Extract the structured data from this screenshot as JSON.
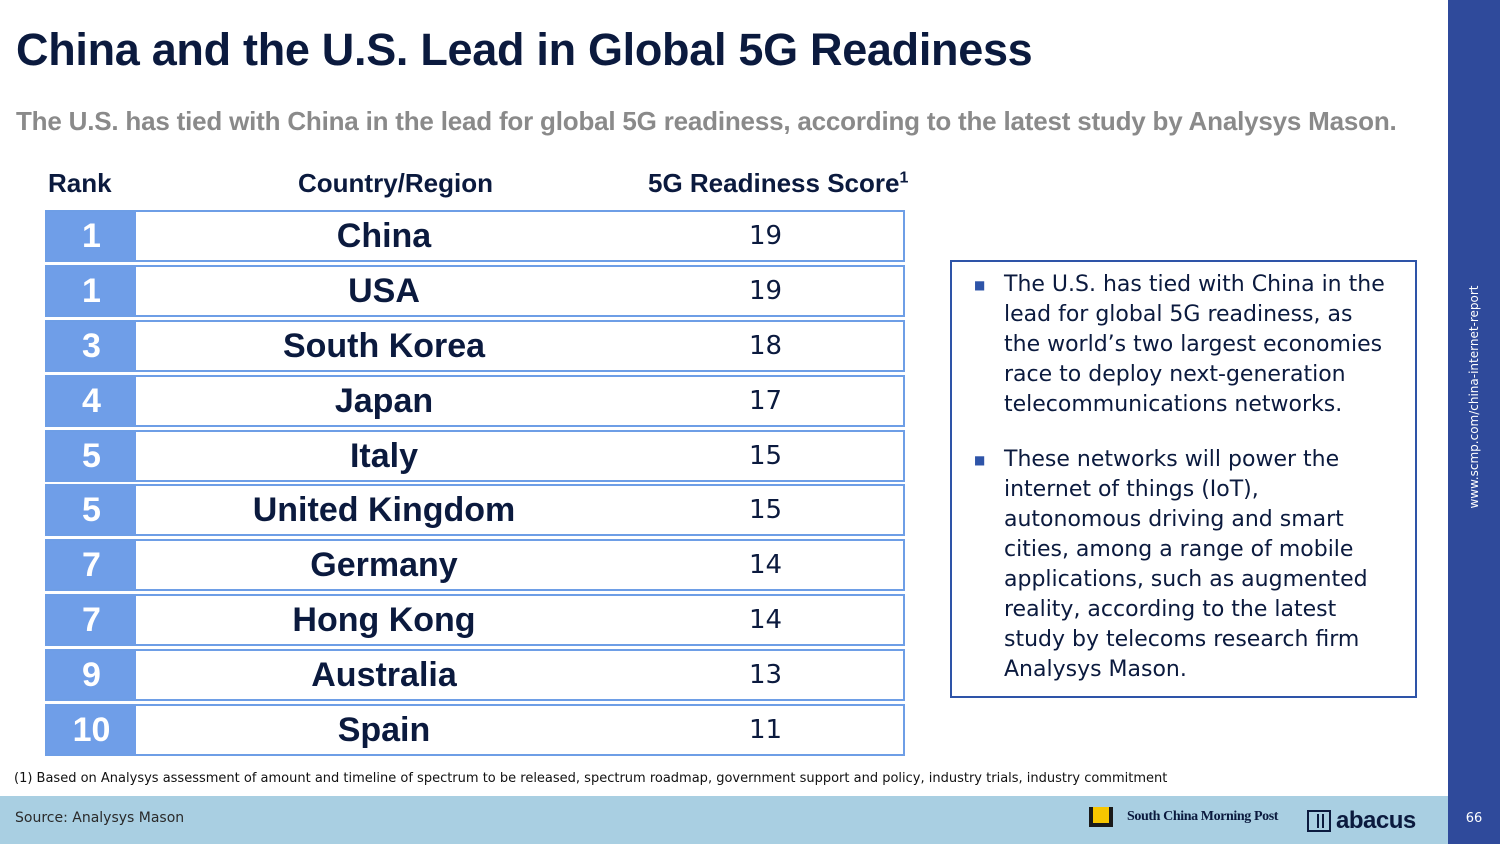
{
  "title": "China and the U.S. Lead in Global 5G Readiness",
  "subtitle": "The U.S. has tied with China in the lead for global 5G readiness, according to the latest study by Analysys Mason.",
  "table": {
    "headers": {
      "rank": "Rank",
      "country": "Country/Region",
      "score": "5G Readiness Score",
      "score_footnote_mark": "1"
    },
    "rows": [
      {
        "rank": "1",
        "country": "China",
        "score": "19"
      },
      {
        "rank": "1",
        "country": "USA",
        "score": "19"
      },
      {
        "rank": "3",
        "country": "South Korea",
        "score": "18"
      },
      {
        "rank": "4",
        "country": "Japan",
        "score": "17"
      },
      {
        "rank": "5",
        "country": "Italy",
        "score": "15"
      },
      {
        "rank": "5",
        "country": "United Kingdom",
        "score": "15"
      },
      {
        "rank": "7",
        "country": "Germany",
        "score": "14"
      },
      {
        "rank": "7",
        "country": "Hong Kong",
        "score": "14"
      },
      {
        "rank": "9",
        "country": "Australia",
        "score": "13"
      },
      {
        "rank": "10",
        "country": "Spain",
        "score": "11"
      }
    ]
  },
  "callout": {
    "bullets": [
      "The U.S. has tied with China in the lead for global 5G readiness, as the world’s two largest economies race to deploy next-generation telecommunications networks.",
      "These networks will power the internet of things (IoT), autonomous driving and smart cities, among a range of mobile applications, such as augmented reality, according to the latest study by telecoms research firm Analysys Mason."
    ]
  },
  "footnote": "(1) Based on Analysys assessment of amount and timeline of spectrum to be released, spectrum roadmap, government support and policy, industry trials, industry commitment",
  "footer": {
    "source": "Source: Analysys Mason",
    "scmp_name": "South China Morning Post",
    "abacus_name": "abacus"
  },
  "sidebar": {
    "url": "www.scmp.com/china-internet-report",
    "page_number": "66"
  },
  "colors": {
    "navy": "#0b1a3e",
    "rank_fill": "#6f9ee8",
    "row_border": "#6e9ee6",
    "sidebar": "#2f4a9b",
    "footer": "#a9cfe2",
    "subtitle_gray": "#8a8a8a"
  }
}
